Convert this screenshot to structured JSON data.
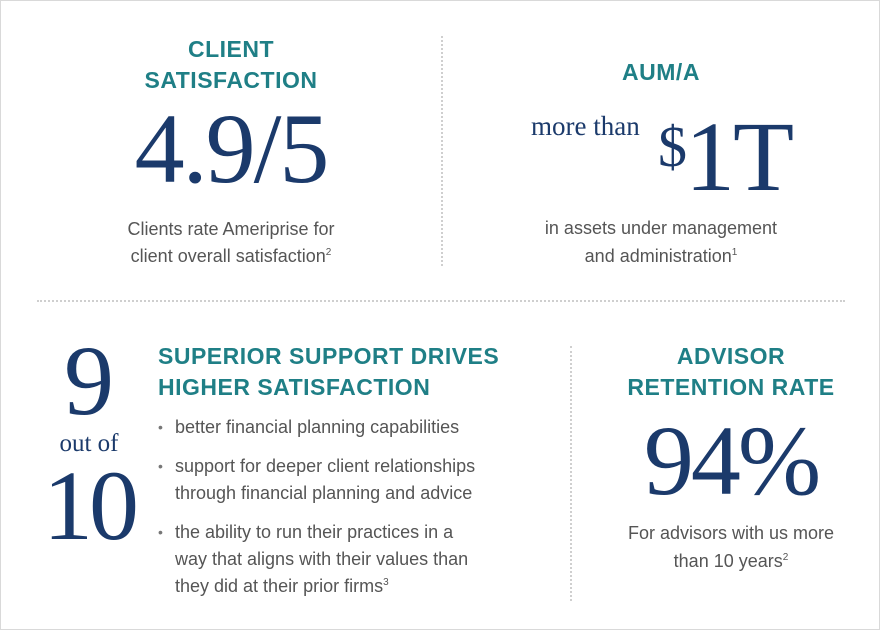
{
  "client_satisfaction": {
    "heading_line1": "CLIENT",
    "heading_line2": "SATISFACTION",
    "value": "4.9/5",
    "caption_line1": "Clients rate Ameriprise for",
    "caption_line2": "client overall satisfaction",
    "footnote": "2"
  },
  "aum": {
    "heading": "AUM/A",
    "prefix": "more than",
    "dollar_sign": "$",
    "amount": "1T",
    "caption_line1": "in assets under management",
    "caption_line2": "and administration",
    "footnote": "1"
  },
  "nine_of_ten": {
    "top": "9",
    "middle": "out of",
    "bottom": "10"
  },
  "superior_support": {
    "heading_line1": "SUPERIOR SUPPORT DRIVES",
    "heading_line2": "HIGHER SATISFACTION",
    "bullet_glyph": "•",
    "items": [
      {
        "line1": "better financial planning capabilities"
      },
      {
        "line1": "support for deeper client relationships",
        "line2": "through financial planning and advice"
      },
      {
        "line1": "the ability to run their practices in a",
        "line2": "way that aligns with their values than",
        "line3": "they did at their prior firms",
        "footnote": "3"
      }
    ]
  },
  "advisor_retention": {
    "heading_line1": "ADVISOR",
    "heading_line2": "RETENTION RATE",
    "value": "94%",
    "caption_line1": "For advisors with us more",
    "caption_line2": "than 10 years",
    "footnote": "2"
  },
  "colors": {
    "heading_teal": "#1f7f86",
    "figure_navy": "#1b3a6b",
    "body_gray": "#555555",
    "divider_gray": "#cfcfcf"
  }
}
